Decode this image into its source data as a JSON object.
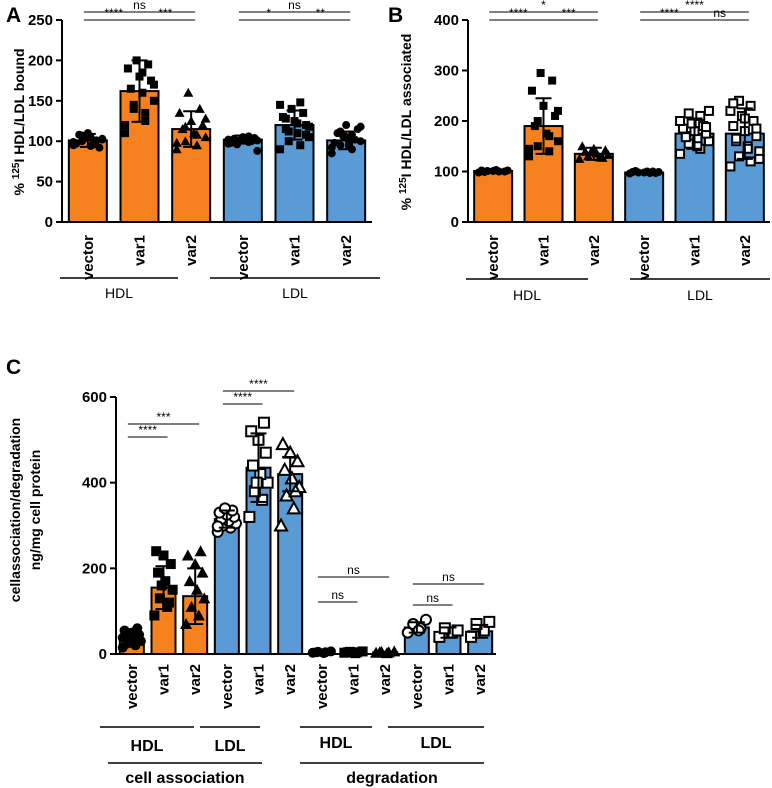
{
  "colors": {
    "orange": "#f5821f",
    "blue": "#5b9bd5",
    "black": "#000000"
  },
  "chart_data": [
    {
      "panel": "A",
      "type": "bar",
      "ylabel": "% 125I HDL/LDL bound",
      "ylabel_prefix": "% ",
      "ylabel_sup": "125",
      "ylabel_main": "I HDL/LDL bound",
      "ylim": [
        0,
        250
      ],
      "yticks": [
        0,
        50,
        100,
        150,
        200,
        250
      ],
      "categories": [
        "vector",
        "var1",
        "var2",
        "vector",
        "var1",
        "var2"
      ],
      "values": [
        101,
        162,
        115,
        102,
        120,
        101
      ],
      "errors": [
        8,
        38,
        22,
        5,
        18,
        11
      ],
      "bar_colors": [
        "orange",
        "orange",
        "orange",
        "blue",
        "blue",
        "blue"
      ],
      "markers": [
        "circle",
        "square",
        "triangle",
        "circle",
        "square",
        "circle"
      ],
      "points": [
        [
          95,
          98,
          100,
          103,
          105,
          108,
          92,
          110,
          97,
          101,
          104,
          99,
          96,
          107,
          102,
          94
        ],
        [
          110,
          125,
          140,
          150,
          160,
          165,
          175,
          180,
          190,
          195,
          200,
          120,
          135,
          145,
          170,
          185
        ],
        [
          90,
          95,
          100,
          105,
          110,
          115,
          120,
          125,
          135,
          140,
          160,
          98,
          108,
          118,
          128
        ],
        [
          97,
          99,
          100,
          101,
          102,
          103,
          104,
          105,
          98,
          100,
          101,
          102,
          106,
          96,
          88
        ],
        [
          90,
          95,
          100,
          105,
          110,
          115,
          120,
          125,
          130,
          135,
          140,
          145,
          148,
          112,
          118,
          122,
          128,
          108
        ],
        [
          85,
          90,
          95,
          100,
          105,
          110,
          115,
          120,
          98,
          102,
          106,
          92,
          108,
          112,
          118,
          96
        ]
      ],
      "group_labels": [
        "HDL",
        "LDL"
      ],
      "significance": [
        {
          "from": 0,
          "to": 2,
          "label": "ns",
          "level": 2
        },
        {
          "from": 0,
          "to": 1,
          "label": "****",
          "level": 1
        },
        {
          "from": 1,
          "to": 2,
          "label": "***",
          "level": 1
        },
        {
          "from": 3,
          "to": 5,
          "label": "ns",
          "level": 2
        },
        {
          "from": 3,
          "to": 4,
          "label": "*",
          "level": 1
        },
        {
          "from": 4,
          "to": 5,
          "label": "**",
          "level": 1
        }
      ]
    },
    {
      "panel": "B",
      "type": "bar",
      "ylabel": "% 125I HDL/LDL associated",
      "ylabel_prefix": "% ",
      "ylabel_sup": "125",
      "ylabel_main": "I HDL/LDL associated",
      "ylim": [
        0,
        400
      ],
      "yticks": [
        0,
        100,
        200,
        300,
        400
      ],
      "categories": [
        "vector",
        "var1",
        "var2",
        "vector",
        "var1",
        "var2"
      ],
      "values": [
        101,
        190,
        135,
        98,
        175,
        175
      ],
      "errors": [
        3,
        55,
        12,
        3,
        30,
        50
      ],
      "bar_colors": [
        "orange",
        "orange",
        "orange",
        "blue",
        "blue",
        "blue"
      ],
      "markers": [
        "circle",
        "square",
        "triangle",
        "circle",
        "square-open",
        "square-open"
      ],
      "points": [
        [
          98,
          100,
          101,
          102,
          103,
          99,
          100,
          101,
          102
        ],
        [
          130,
          140,
          150,
          160,
          175,
          190,
          210,
          230,
          260,
          280,
          295,
          145,
          170,
          200,
          220
        ],
        [
          125,
          128,
          130,
          133,
          136,
          139,
          142,
          145,
          150,
          127,
          138
        ],
        [
          96,
          97,
          98,
          99,
          100,
          101,
          97,
          98,
          99,
          100
        ],
        [
          135,
          145,
          155,
          160,
          165,
          170,
          175,
          180,
          185,
          190,
          195,
          200,
          210,
          215,
          220,
          150,
          168,
          188
        ],
        [
          110,
          120,
          130,
          140,
          150,
          160,
          170,
          180,
          190,
          200,
          210,
          220,
          230,
          240,
          125,
          145,
          165,
          185,
          205,
          235
        ]
      ],
      "group_labels": [
        "HDL",
        "LDL"
      ],
      "significance": [
        {
          "from": 0,
          "to": 2,
          "label": "*",
          "level": 2
        },
        {
          "from": 0,
          "to": 1,
          "label": "****",
          "level": 1
        },
        {
          "from": 1,
          "to": 2,
          "label": "***",
          "level": 1
        },
        {
          "from": 3,
          "to": 5,
          "label": "****",
          "level": 2
        },
        {
          "from": 3,
          "to": 4,
          "label": "****",
          "level": 1
        },
        {
          "from": 4,
          "to": 5,
          "label": "ns",
          "level": 1
        }
      ]
    },
    {
      "panel": "C",
      "type": "bar",
      "ylabel_line1": "cellassociation/degradation",
      "ylabel_line2": "ng/mg cell protein",
      "ylim": [
        0,
        600
      ],
      "yticks": [
        0,
        200,
        400,
        600
      ],
      "categories": [
        "vector",
        "var1",
        "var2",
        "vector",
        "var1",
        "var2",
        "vector",
        "var1",
        "var2",
        "vector",
        "var1",
        "var2"
      ],
      "values": [
        35,
        155,
        135,
        315,
        435,
        420,
        4,
        4,
        4,
        62,
        50,
        53
      ],
      "errors": [
        15,
        50,
        65,
        20,
        80,
        40,
        1,
        1,
        1,
        12,
        12,
        15
      ],
      "bar_colors": [
        "orange",
        "orange",
        "orange",
        "blue",
        "blue",
        "blue",
        "blue",
        "blue",
        "blue",
        "blue",
        "blue",
        "blue"
      ],
      "markers": [
        "circle",
        "square",
        "triangle",
        "circle-open",
        "square-open",
        "triangle-open",
        "circle",
        "square",
        "triangle",
        "circle-open",
        "square-open",
        "square-open"
      ],
      "points": [
        [
          15,
          20,
          25,
          30,
          35,
          40,
          45,
          50,
          55,
          60,
          28,
          38
        ],
        [
          90,
          110,
          130,
          150,
          170,
          190,
          210,
          230,
          240,
          120,
          160
        ],
        [
          70,
          90,
          110,
          130,
          150,
          170,
          190,
          210,
          230,
          240
        ],
        [
          285,
          295,
          300,
          305,
          310,
          315,
          320,
          325,
          330,
          335,
          340,
          298
        ],
        [
          320,
          360,
          380,
          400,
          420,
          440,
          470,
          500,
          520,
          540,
          400
        ],
        [
          300,
          340,
          370,
          390,
          410,
          430,
          450,
          470,
          490,
          380
        ],
        [
          3,
          4,
          5,
          6,
          2,
          4
        ],
        [
          3,
          4,
          5,
          6,
          2,
          4
        ],
        [
          3,
          4,
          5,
          6,
          2,
          4
        ],
        [
          50,
          60,
          70,
          80,
          55
        ],
        [
          40,
          50,
          60,
          55
        ],
        [
          40,
          55,
          70,
          75
        ]
      ],
      "group_labels": [
        "HDL",
        "LDL",
        "HDL",
        "LDL"
      ],
      "super_labels": [
        "cell association",
        "degradation"
      ],
      "significance": [
        {
          "from": 0,
          "to": 2,
          "label": "***",
          "level": 2
        },
        {
          "from": 0,
          "to": 1,
          "label": "****",
          "level": 1
        },
        {
          "from": 3,
          "to": 5,
          "label": "****",
          "level": 2
        },
        {
          "from": 3,
          "to": 4,
          "label": "****",
          "level": 1
        },
        {
          "from": 6,
          "to": 8,
          "label": "ns",
          "level": 2
        },
        {
          "from": 6,
          "to": 7,
          "label": "ns",
          "level": 1
        },
        {
          "from": 9,
          "to": 11,
          "label": "ns",
          "level": 2
        },
        {
          "from": 9,
          "to": 10,
          "label": "ns",
          "level": 1
        }
      ]
    }
  ]
}
